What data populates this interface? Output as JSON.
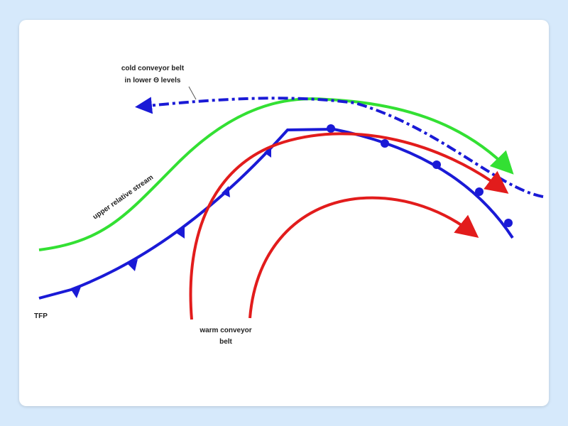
{
  "labels": {
    "cold_conveyor": [
      "cold conveyor belt",
      "in lower Θ levels"
    ],
    "upper_stream": "upper relative stream",
    "tfp": "TFP",
    "warm_conveyor": [
      "warm conveyor",
      "belt"
    ]
  }
}
